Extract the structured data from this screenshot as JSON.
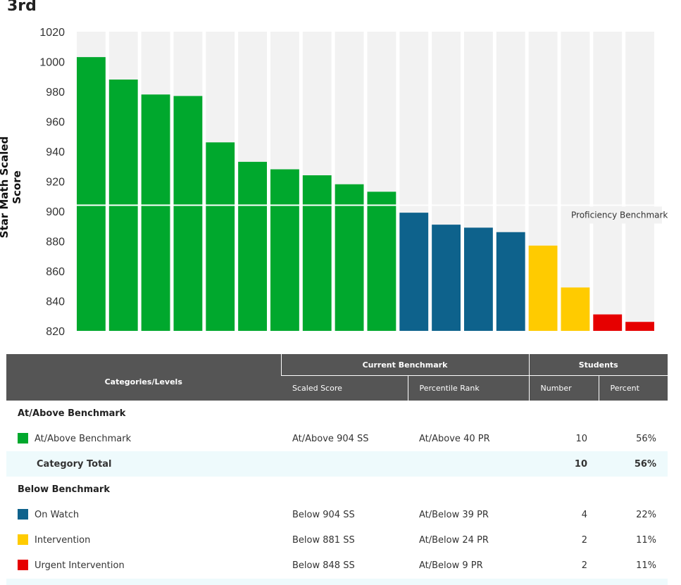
{
  "grade_title": "3rd",
  "chart_data": {
    "type": "bar",
    "ylabel": "Star Math Scaled Score",
    "ylim": [
      820,
      1020
    ],
    "yticks": [
      820,
      840,
      860,
      880,
      900,
      920,
      940,
      960,
      980,
      1000,
      1020
    ],
    "benchmark": {
      "label": "Proficiency Benchmark",
      "value": 904
    },
    "values": [
      1003,
      988,
      978,
      977,
      946,
      933,
      928,
      924,
      918,
      913,
      899,
      891,
      889,
      886,
      877,
      849,
      831,
      826
    ],
    "bar_categories": [
      "at_above",
      "at_above",
      "at_above",
      "at_above",
      "at_above",
      "at_above",
      "at_above",
      "at_above",
      "at_above",
      "at_above",
      "on_watch",
      "on_watch",
      "on_watch",
      "on_watch",
      "intervention",
      "intervention",
      "urgent",
      "urgent"
    ],
    "colors": {
      "at_above": "#00a82d",
      "on_watch": "#0e628c",
      "intervention": "#ffcb00",
      "urgent": "#e60000",
      "background_bar": "#f2f2f2"
    }
  },
  "table": {
    "headers": {
      "categories": "Categories/Levels",
      "current_benchmark": "Current Benchmark",
      "students": "Students",
      "scaled_score": "Scaled Score",
      "percentile_rank": "Percentile Rank",
      "number": "Number",
      "percent": "Percent"
    },
    "at_above_group": {
      "title": "At/Above Benchmark",
      "row": {
        "label": "At/Above Benchmark",
        "color": "#00a82d",
        "ss": "At/Above 904 SS",
        "pr": "At/Above 40 PR",
        "number": "10",
        "percent": "56%"
      },
      "total": {
        "label": "Category Total",
        "number": "10",
        "percent": "56%"
      }
    },
    "below_group": {
      "title": "Below Benchmark",
      "rows": [
        {
          "label": "On Watch",
          "color": "#0e628c",
          "ss": "Below 904 SS",
          "pr": "At/Below 39 PR",
          "number": "4",
          "percent": "22%"
        },
        {
          "label": "Intervention",
          "color": "#ffcb00",
          "ss": "Below 881 SS",
          "pr": "At/Below 24 PR",
          "number": "2",
          "percent": "11%"
        },
        {
          "label": "Urgent Intervention",
          "color": "#e60000",
          "ss": "Below 848 SS",
          "pr": "At/Below 9 PR",
          "number": "2",
          "percent": "11%"
        }
      ]
    }
  }
}
